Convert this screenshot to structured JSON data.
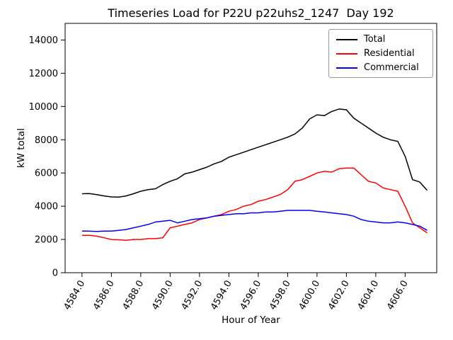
{
  "chart_data": {
    "type": "line",
    "title": "Timeseries Load for P22U p22uhs2_1247  Day 192",
    "xlabel": "Hour of Year",
    "ylabel": "kW total",
    "xlim": [
      4582.85,
      4608.15
    ],
    "ylim": [
      0,
      15000
    ],
    "xticks": [
      4584.0,
      4586.0,
      4588.0,
      4590.0,
      4592.0,
      4594.0,
      4596.0,
      4598.0,
      4600.0,
      4602.0,
      4604.0,
      4606.0
    ],
    "yticks": [
      0,
      2000,
      4000,
      6000,
      8000,
      10000,
      12000,
      14000
    ],
    "xtick_rotation": 60,
    "grid": false,
    "legend_position": "upper right",
    "x": [
      4584.0,
      4584.5,
      4585.0,
      4585.5,
      4586.0,
      4586.5,
      4587.0,
      4587.5,
      4588.0,
      4588.5,
      4589.0,
      4589.5,
      4590.0,
      4590.5,
      4591.0,
      4591.5,
      4592.0,
      4592.5,
      4593.0,
      4593.5,
      4594.0,
      4594.5,
      4595.0,
      4595.5,
      4596.0,
      4596.5,
      4597.0,
      4597.5,
      4598.0,
      4598.5,
      4599.0,
      4599.5,
      4600.0,
      4600.5,
      4601.0,
      4601.5,
      4602.0,
      4602.5,
      4603.0,
      4603.5,
      4604.0,
      4604.5,
      4605.0,
      4605.5,
      4606.0,
      4606.5,
      4607.0,
      4607.5
    ],
    "series": [
      {
        "name": "Total",
        "color": "#000000",
        "values": [
          4750,
          4760,
          4700,
          4620,
          4560,
          4550,
          4620,
          4750,
          4900,
          5000,
          5050,
          5300,
          5500,
          5650,
          5950,
          6050,
          6200,
          6350,
          6550,
          6700,
          6950,
          7100,
          7250,
          7400,
          7550,
          7700,
          7850,
          8000,
          8150,
          8350,
          8700,
          9250,
          9500,
          9450,
          9700,
          9850,
          9800,
          9300,
          9000,
          8700,
          8400,
          8150,
          8000,
          7900,
          7000,
          5600,
          5450,
          4950
        ]
      },
      {
        "name": "Residential",
        "color": "#ff0000",
        "values": [
          2250,
          2250,
          2200,
          2100,
          2000,
          1980,
          1950,
          2000,
          2000,
          2050,
          2050,
          2100,
          2700,
          2800,
          2900,
          3000,
          3200,
          3300,
          3400,
          3500,
          3700,
          3800,
          4000,
          4100,
          4300,
          4400,
          4550,
          4700,
          5000,
          5500,
          5600,
          5800,
          6000,
          6100,
          6050,
          6250,
          6300,
          6300,
          5900,
          5500,
          5400,
          5100,
          5000,
          4900,
          4000,
          3000,
          2700,
          2400
        ]
      },
      {
        "name": "Commercial",
        "color": "#0000ff",
        "values": [
          2500,
          2500,
          2480,
          2500,
          2500,
          2550,
          2600,
          2700,
          2800,
          2900,
          3050,
          3100,
          3150,
          3000,
          3100,
          3200,
          3250,
          3300,
          3400,
          3450,
          3500,
          3550,
          3550,
          3600,
          3600,
          3650,
          3650,
          3700,
          3750,
          3750,
          3750,
          3750,
          3700,
          3650,
          3600,
          3550,
          3500,
          3400,
          3200,
          3100,
          3050,
          3000,
          3000,
          3050,
          3000,
          2900,
          2800,
          2550
        ]
      }
    ]
  }
}
